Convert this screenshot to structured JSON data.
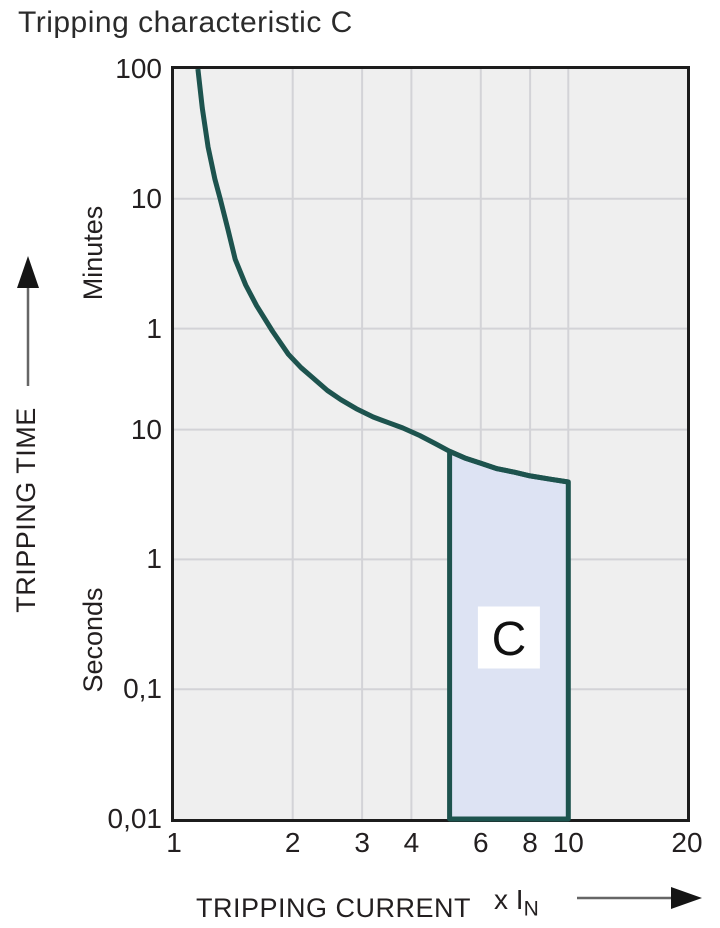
{
  "title": "Tripping characteristic C",
  "y_axis": {
    "label": "TRIPPING TIME",
    "unit_upper": "Minutes",
    "unit_lower": "Seconds",
    "ticks": [
      {
        "text": "100",
        "seconds": 6000
      },
      {
        "text": "10",
        "seconds": 600
      },
      {
        "text": "1",
        "seconds": 60
      },
      {
        "text": "10",
        "seconds": 10
      },
      {
        "text": "1",
        "seconds": 1
      },
      {
        "text": "0,1",
        "seconds": 0.1
      },
      {
        "text": "0,01",
        "seconds": 0.01
      }
    ]
  },
  "x_axis": {
    "label": "TRIPPING CURRENT",
    "unit_prefix": "x I",
    "unit_sub": "N",
    "ticks": [
      {
        "text": "1",
        "value": 1
      },
      {
        "text": "2",
        "value": 2
      },
      {
        "text": "3",
        "value": 3
      },
      {
        "text": "4",
        "value": 4
      },
      {
        "text": "6",
        "value": 6
      },
      {
        "text": "8",
        "value": 8
      },
      {
        "text": "10",
        "value": 10
      },
      {
        "text": "20",
        "value": 20
      }
    ]
  },
  "colors": {
    "curve": "#1d534e",
    "region_fill": "#dde3f3",
    "region_stroke": "#1d534e",
    "plot_background": "#efefef",
    "gridline": "#d3d3d7",
    "frame": "#1c1c1c",
    "text": "#231f20",
    "label_box": "#ffffff"
  },
  "chart_data": {
    "type": "line",
    "title": "Tripping characteristic C",
    "xlabel": "TRIPPING CURRENT x IN",
    "ylabel": "TRIPPING TIME (minutes above, seconds below)",
    "x_scale": "log",
    "y_scale": "log",
    "xlim": [
      1,
      20
    ],
    "ylim_seconds": [
      0.01,
      6000
    ],
    "grid": true,
    "x_gridlines": [
      2,
      3,
      4,
      6,
      8,
      10
    ],
    "y_gridlines_seconds": [
      600,
      60,
      10,
      1,
      0.1
    ],
    "series": [
      {
        "name": "trip-curve",
        "points": [
          [
            1.15,
            6000
          ],
          [
            1.18,
            3000
          ],
          [
            1.22,
            1500
          ],
          [
            1.27,
            850
          ],
          [
            1.31,
            600
          ],
          [
            1.37,
            350
          ],
          [
            1.43,
            205
          ],
          [
            1.52,
            130
          ],
          [
            1.62,
            90
          ],
          [
            1.78,
            57
          ],
          [
            1.95,
            38
          ],
          [
            2.1,
            30
          ],
          [
            2.25,
            25
          ],
          [
            2.45,
            20
          ],
          [
            2.65,
            17
          ],
          [
            2.9,
            14.5
          ],
          [
            3.2,
            12.5
          ],
          [
            3.5,
            11.3
          ],
          [
            3.8,
            10.3
          ],
          [
            4.2,
            9.0
          ],
          [
            4.6,
            7.8
          ],
          [
            5.0,
            6.8
          ],
          [
            5.5,
            6.0
          ],
          [
            6.0,
            5.5
          ],
          [
            6.6,
            5.0
          ],
          [
            7.3,
            4.7
          ],
          [
            8.0,
            4.4
          ],
          [
            9.0,
            4.15
          ],
          [
            10.0,
            3.95
          ]
        ]
      }
    ],
    "region": {
      "label": "C",
      "x_range": [
        5,
        10
      ],
      "t_bottom": 0.01,
      "top_points": [
        [
          5.0,
          6.8
        ],
        [
          5.5,
          6.0
        ],
        [
          6.0,
          5.5
        ],
        [
          6.6,
          5.0
        ],
        [
          7.3,
          4.7
        ],
        [
          8.0,
          4.4
        ],
        [
          9.0,
          4.15
        ],
        [
          10.0,
          3.95
        ]
      ],
      "label_at": [
        7.07,
        0.25
      ]
    }
  }
}
